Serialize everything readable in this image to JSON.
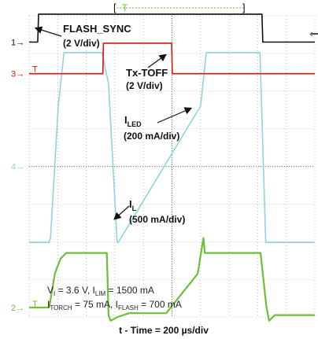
{
  "chart_data": {
    "type": "line",
    "title": "",
    "x_unit": "div",
    "x_range": [
      0,
      10
    ],
    "y_range_div": [
      0,
      8
    ],
    "grid": true,
    "trigger_marker": "T",
    "colors": {
      "flash_sync": "#111111",
      "tx_toff": "#e01010",
      "iled": "#8fd3e0",
      "il": "#6cbf3a",
      "grid": "#9a9a9a"
    },
    "series": [
      {
        "id": "flash_sync",
        "name": "FLASH_SYNC",
        "scale": "(2 V/div)",
        "channel": "1",
        "color": "#111111",
        "x": [
          0,
          0.3,
          0.33,
          8.15,
          8.18,
          10
        ],
        "y": [
          7.3,
          7.3,
          8.04,
          8.04,
          7.3,
          7.3
        ]
      },
      {
        "id": "tx_toff",
        "name": "Tx-TOFF",
        "scale": "(2 V/div)",
        "channel": "3",
        "color": "#e01010",
        "x": [
          0,
          2.58,
          2.6,
          4.99,
          5.01,
          10
        ],
        "y": [
          6.46,
          6.46,
          7.27,
          7.27,
          6.46,
          6.46
        ]
      },
      {
        "id": "iled",
        "name": "I",
        "name_sub": "LED",
        "scale": "(200 mA/div)",
        "channel": "",
        "color": "#8fd3e0",
        "x": [
          0,
          0.7,
          0.75,
          1.02,
          1.22,
          1.75,
          2.55,
          2.78,
          3.08,
          3.12,
          6.0,
          6.2,
          6.4,
          6.78,
          8.08,
          8.28,
          8.4,
          10
        ],
        "y": [
          1.98,
          1.98,
          2.1,
          5.6,
          7.02,
          7.02,
          7.02,
          6.2,
          1.98,
          1.98,
          5.6,
          7.02,
          7.02,
          7.02,
          7.02,
          1.98,
          1.98,
          1.98
        ]
      },
      {
        "id": "il",
        "name": "I",
        "name_sub": "L",
        "scale": "(500 mA/div)",
        "channel": "2",
        "color": "#6cbf3a",
        "x": [
          0,
          0.7,
          0.9,
          1.1,
          1.3,
          1.75,
          2.55,
          2.72,
          2.78,
          2.85,
          3.1,
          3.5,
          4.8,
          5.9,
          6.1,
          6.15,
          6.4,
          6.78,
          8.1,
          8.3,
          8.4,
          8.6,
          10
        ],
        "y": [
          0.25,
          0.25,
          1.15,
          1.55,
          1.7,
          1.7,
          1.7,
          1.7,
          0.05,
          -0.1,
          0.0,
          0.1,
          0.1,
          1.15,
          2.1,
          1.7,
          1.7,
          1.7,
          1.7,
          0.3,
          -0.1,
          0.05,
          0.05
        ]
      }
    ],
    "annotations": {
      "conditions_line1": "V",
      "conditions_line1_sub": "I",
      "conditions_line1_mid": " = 3.6 V, I",
      "conditions_line1_sub2": "LIM",
      "conditions_line1_end": " = 1500 mA",
      "conditions_line2": "I",
      "conditions_line2_sub": "TORCH",
      "conditions_line2_mid": " = 75 mA, I",
      "conditions_line2_sub2": "FLASH",
      "conditions_line2_end": " = 700 mA",
      "xlabel": "t - Time =  200 µs/div"
    }
  }
}
